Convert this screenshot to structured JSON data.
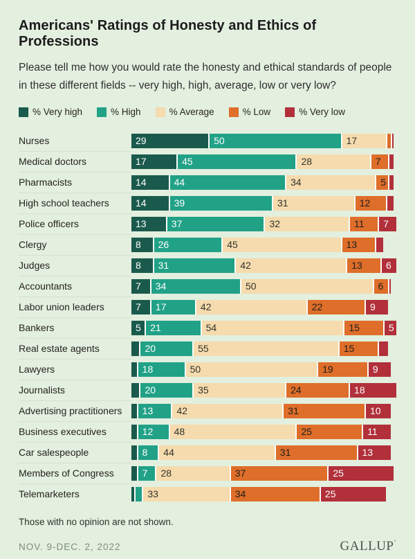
{
  "page": {
    "background_color": "#E3EFDF"
  },
  "header": {
    "title": "Americans' Ratings of Honesty and Ethics of Professions",
    "subtitle": "Please tell me how you would rate the honesty and ethical standards of people in these different fields -- very high, high, average, low or very low?"
  },
  "legend": {
    "items": [
      {
        "label": "% Very high",
        "color": "#1A5A4C"
      },
      {
        "label": "% High",
        "color": "#21A287"
      },
      {
        "label": "% Average",
        "color": "#F5DBAD"
      },
      {
        "label": "% Low",
        "color": "#DE6E2A"
      },
      {
        "label": "% Very low",
        "color": "#B1303A"
      }
    ]
  },
  "chart_data": {
    "type": "bar",
    "orientation": "horizontal",
    "stacked": true,
    "xlim": [
      0,
      100
    ],
    "grid": false,
    "legend_position": "top",
    "value_label_min_shown": 5,
    "title": "Americans' Ratings of Honesty and Ethics of Professions",
    "categories": [
      "Nurses",
      "Medical doctors",
      "Pharmacists",
      "High school teachers",
      "Police officers",
      "Clergy",
      "Judges",
      "Accountants",
      "Labor union leaders",
      "Bankers",
      "Real estate agents",
      "Lawyers",
      "Journalists",
      "Advertising practitioners",
      "Business executives",
      "Car salespeople",
      "Members of Congress",
      "Telemarketers"
    ],
    "series": [
      {
        "key": "very-high",
        "name": "% Very high",
        "color": "#1A5A4C",
        "text_color": "#FFFFFF",
        "values": [
          29,
          17,
          14,
          14,
          13,
          8,
          8,
          7,
          7,
          5,
          3,
          2,
          3,
          2,
          2,
          2,
          2,
          1
        ]
      },
      {
        "key": "high",
        "name": "% High",
        "color": "#21A287",
        "text_color": "#FFFFFF",
        "values": [
          50,
          45,
          44,
          39,
          37,
          26,
          31,
          34,
          17,
          21,
          20,
          18,
          20,
          13,
          12,
          8,
          7,
          3
        ]
      },
      {
        "key": "average",
        "name": "% Average",
        "color": "#F5DBAD",
        "text_color": "#33322B",
        "values": [
          17,
          28,
          34,
          31,
          32,
          45,
          42,
          50,
          42,
          54,
          55,
          50,
          35,
          42,
          48,
          44,
          28,
          33
        ]
      },
      {
        "key": "low",
        "name": "% Low",
        "color": "#DE6E2A",
        "text_color": "#201E1A",
        "values": [
          2,
          7,
          5,
          12,
          11,
          13,
          13,
          6,
          22,
          15,
          15,
          19,
          24,
          31,
          25,
          31,
          37,
          34
        ]
      },
      {
        "key": "very-low",
        "name": "% Very low",
        "color": "#B1303A",
        "text_color": "#FFFFFF",
        "values": [
          1,
          2,
          2,
          3,
          7,
          3,
          6,
          1,
          9,
          5,
          4,
          9,
          18,
          10,
          11,
          13,
          25,
          25
        ]
      }
    ]
  },
  "footnote": "Those with no opinion are not shown.",
  "footer": {
    "date": "NOV. 9-DEC. 2, 2022",
    "logo": "GALLUP",
    "logo_mark": "’"
  }
}
